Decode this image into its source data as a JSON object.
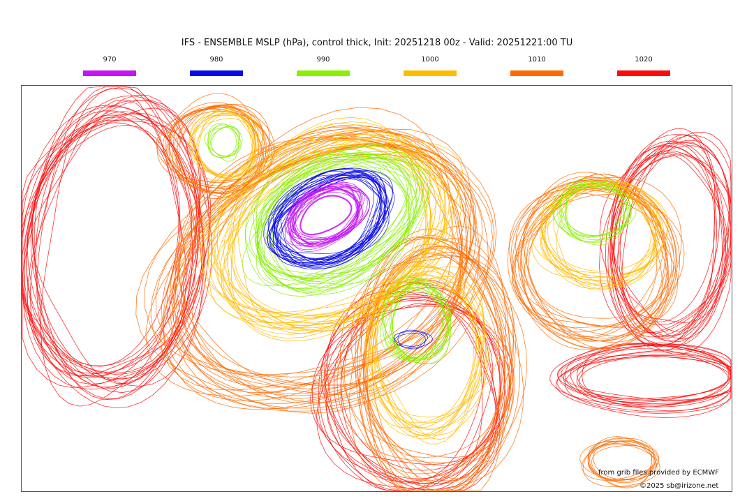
{
  "title": "IFS - ENSEMBLE MSLP (hPa), control thick, Init: 20251218 00z - Valid: 20251221:00 TU",
  "legend": [
    {
      "label": "970",
      "color": "#c415f5"
    },
    {
      "label": "980",
      "color": "#0a0ae6"
    },
    {
      "label": "990",
      "color": "#88f000"
    },
    {
      "label": "1000",
      "color": "#ffbb00"
    },
    {
      "label": "1010",
      "color": "#ff6a00"
    },
    {
      "label": "1020",
      "color": "#ff0a0a"
    }
  ],
  "credits": {
    "source": "from grib files provided by ECMWF",
    "copyright": "©2025 sb@irizone.net"
  }
}
